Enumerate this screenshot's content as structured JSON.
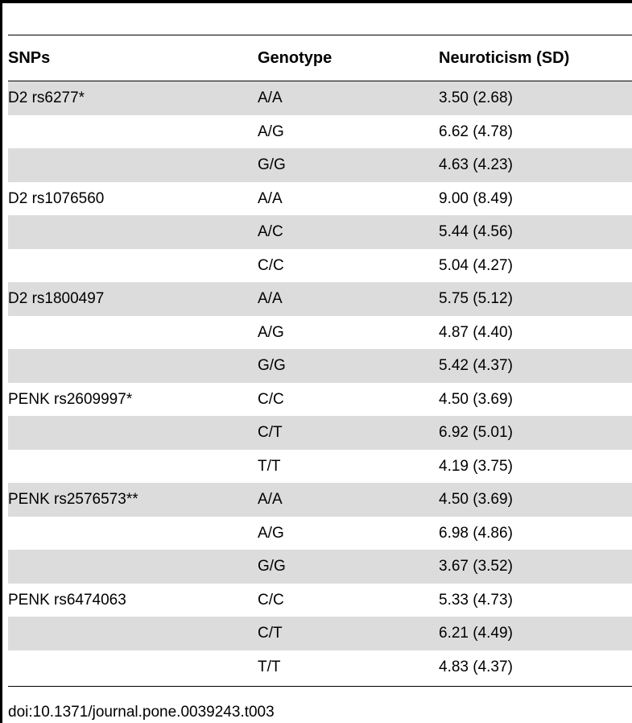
{
  "table": {
    "headers": {
      "snp": "SNPs",
      "genotype": "Genotype",
      "neuroticism": "Neuroticism (SD)"
    },
    "rows": [
      {
        "snp": "D2 rs6277*",
        "genotype": "A/A",
        "value": "3.50 (2.68)"
      },
      {
        "snp": "",
        "genotype": "A/G",
        "value": "6.62 (4.78)"
      },
      {
        "snp": "",
        "genotype": "G/G",
        "value": "4.63 (4.23)"
      },
      {
        "snp": "D2 rs1076560",
        "genotype": "A/A",
        "value": "9.00 (8.49)"
      },
      {
        "snp": "",
        "genotype": "A/C",
        "value": "5.44 (4.56)"
      },
      {
        "snp": "",
        "genotype": "C/C",
        "value": "5.04 (4.27)"
      },
      {
        "snp": "D2 rs1800497",
        "genotype": "A/A",
        "value": "5.75 (5.12)"
      },
      {
        "snp": "",
        "genotype": "A/G",
        "value": "4.87 (4.40)"
      },
      {
        "snp": "",
        "genotype": "G/G",
        "value": "5.42 (4.37)"
      },
      {
        "snp": "PENK rs2609997*",
        "genotype": "C/C",
        "value": "4.50 (3.69)"
      },
      {
        "snp": "",
        "genotype": "C/T",
        "value": "6.92 (5.01)"
      },
      {
        "snp": "",
        "genotype": "T/T",
        "value": "4.19 (3.75)"
      },
      {
        "snp": "PENK rs2576573**",
        "genotype": "A/A",
        "value": "4.50 (3.69)"
      },
      {
        "snp": "",
        "genotype": "A/G",
        "value": "6.98 (4.86)"
      },
      {
        "snp": "",
        "genotype": "G/G",
        "value": "3.67 (3.52)"
      },
      {
        "snp": "PENK rs6474063",
        "genotype": "C/C",
        "value": "5.33 (4.73)"
      },
      {
        "snp": "",
        "genotype": "C/T",
        "value": "6.21 (4.49)"
      },
      {
        "snp": "",
        "genotype": "T/T",
        "value": "4.83 (4.37)"
      }
    ]
  },
  "footer": {
    "doi": "doi:10.1371/journal.pone.0039243.t003"
  },
  "colors": {
    "row_shade": "#dcdcdc",
    "rule": "#000000"
  }
}
